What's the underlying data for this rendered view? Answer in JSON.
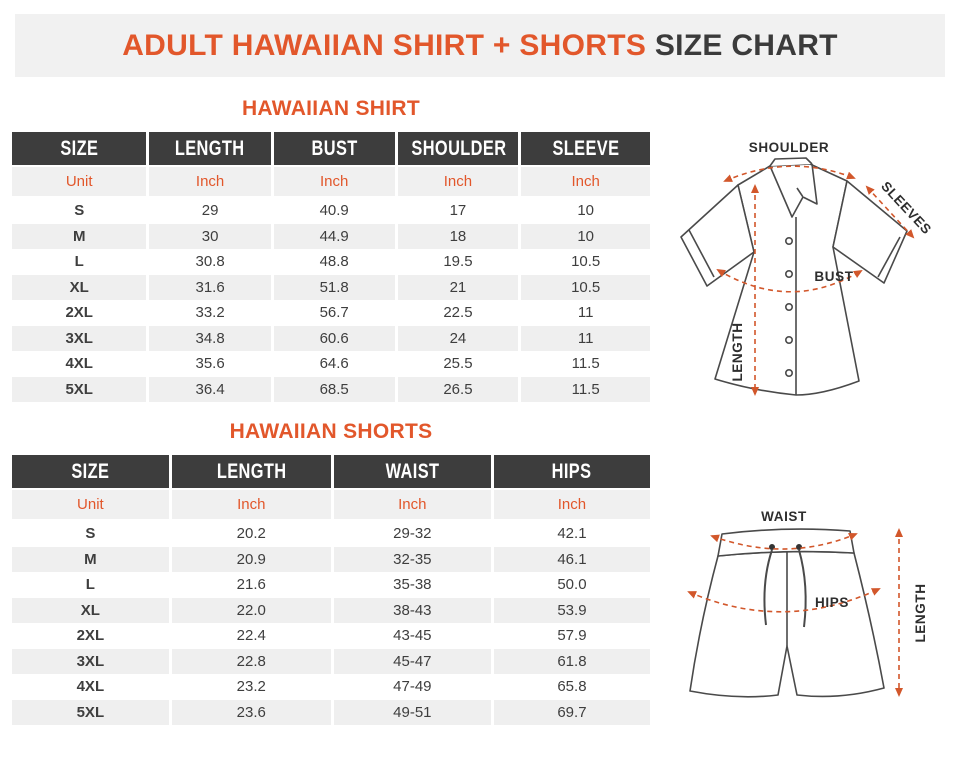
{
  "title": {
    "highlight": "ADULT HAWAIIAN SHIRT + SHORTS ",
    "rest": "SIZE CHART"
  },
  "colors": {
    "accent_orange": "#E2572B",
    "arrow_orange": "#D2572B",
    "header_dark": "#3D3D3D",
    "banner_bg": "#F1F1F1",
    "row_alt_bg": "#EFEFEF",
    "text_dark": "#3E3E3E"
  },
  "shirt_table": {
    "heading": "HAWAIIAN SHIRT",
    "columns": [
      "SIZE",
      "LENGTH",
      "BUST",
      "SHOULDER",
      "SLEEVE"
    ],
    "unit_row": [
      "Unit",
      "Inch",
      "Inch",
      "Inch",
      "Inch"
    ],
    "rows": [
      [
        "S",
        "29",
        "40.9",
        "17",
        "10"
      ],
      [
        "M",
        "30",
        "44.9",
        "18",
        "10"
      ],
      [
        "L",
        "30.8",
        "48.8",
        "19.5",
        "10.5"
      ],
      [
        "XL",
        "31.6",
        "51.8",
        "21",
        "10.5"
      ],
      [
        "2XL",
        "33.2",
        "56.7",
        "22.5",
        "11"
      ],
      [
        "3XL",
        "34.8",
        "60.6",
        "24",
        "11"
      ],
      [
        "4XL",
        "35.6",
        "64.6",
        "25.5",
        "11.5"
      ],
      [
        "5XL",
        "36.4",
        "68.5",
        "26.5",
        "11.5"
      ]
    ]
  },
  "shorts_table": {
    "heading": "HAWAIIAN SHORTS",
    "columns": [
      "SIZE",
      "LENGTH",
      "WAIST",
      "HIPS"
    ],
    "unit_row": [
      "Unit",
      "Inch",
      "Inch",
      "Inch"
    ],
    "rows": [
      [
        "S",
        "20.2",
        "29-32",
        "42.1"
      ],
      [
        "M",
        "20.9",
        "32-35",
        "46.1"
      ],
      [
        "L",
        "21.6",
        "35-38",
        "50.0"
      ],
      [
        "XL",
        "22.0",
        "38-43",
        "53.9"
      ],
      [
        "2XL",
        "22.4",
        "43-45",
        "57.9"
      ],
      [
        "3XL",
        "22.8",
        "45-47",
        "61.8"
      ],
      [
        "4XL",
        "23.2",
        "47-49",
        "65.8"
      ],
      [
        "5XL",
        "23.6",
        "49-51",
        "69.7"
      ]
    ]
  },
  "shirt_diagram": {
    "labels": {
      "shoulder": "SHOULDER",
      "sleeves": "SLEEVES",
      "bust": "BUST",
      "length": "LENGTH"
    }
  },
  "shorts_diagram": {
    "labels": {
      "waist": "WAIST",
      "hips": "HIPS",
      "length": "LENGTH"
    }
  }
}
